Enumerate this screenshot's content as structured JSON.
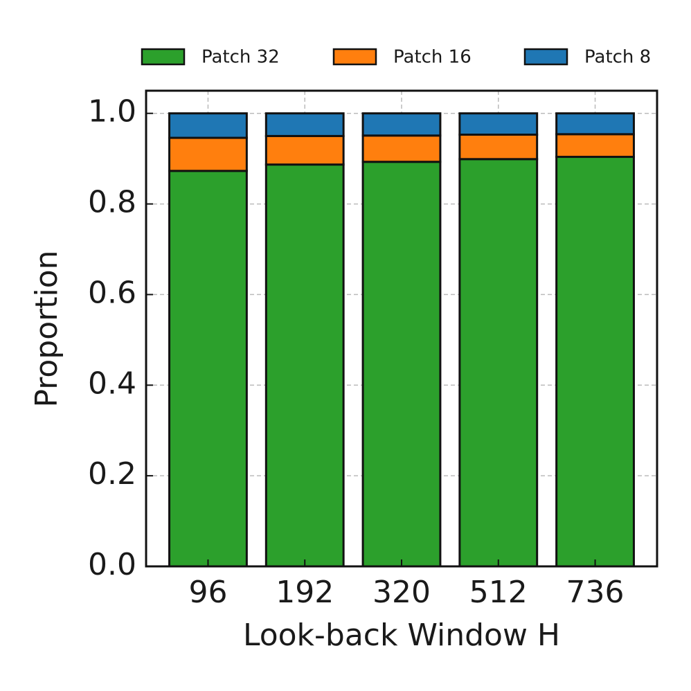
{
  "chart_data": {
    "type": "stacked_bar",
    "xlabel": "Look-back Window H",
    "ylabel": "Proportion",
    "categories": [
      "96",
      "192",
      "320",
      "512",
      "736"
    ],
    "series": [
      {
        "name": "Patch 32",
        "color": "#2ca02c",
        "values": [
          0.873,
          0.887,
          0.893,
          0.899,
          0.904
        ]
      },
      {
        "name": "Patch 16",
        "color": "#ff7f0e",
        "values": [
          0.073,
          0.063,
          0.058,
          0.054,
          0.05
        ]
      },
      {
        "name": "Patch 8",
        "color": "#1f77b4",
        "values": [
          0.054,
          0.05,
          0.049,
          0.047,
          0.046
        ]
      }
    ],
    "ylim": [
      0,
      1.05
    ],
    "yticks": [
      {
        "value": 0,
        "label": "0.0"
      },
      0.2,
      0.4,
      0.6,
      0.8,
      {
        "value": 1,
        "label": "1.0"
      }
    ],
    "grid": true,
    "legend": "top"
  }
}
